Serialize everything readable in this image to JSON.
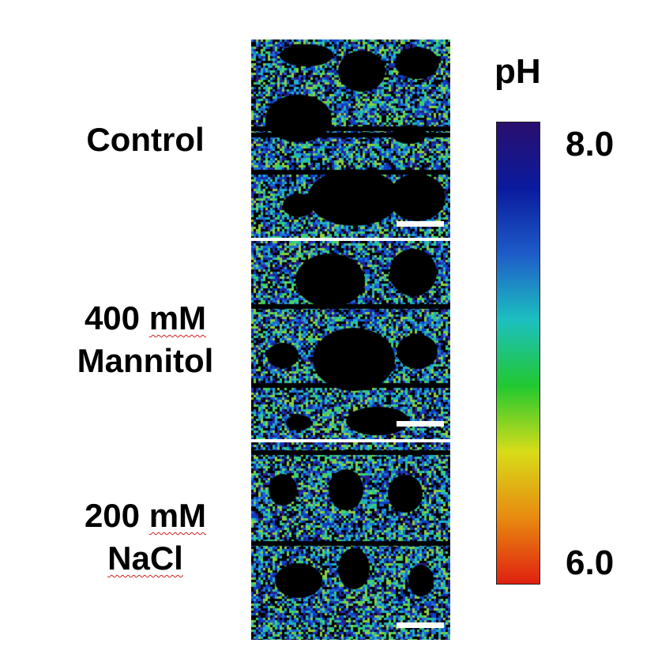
{
  "rows": [
    {
      "label_lines": [
        "Control"
      ],
      "label_squiggle": []
    },
    {
      "label_lines": [
        "400 mM",
        "Mannitol"
      ],
      "label_squiggle": [
        "mM"
      ]
    },
    {
      "label_lines": [
        "200 mM",
        "NaCl"
      ],
      "label_squiggle": [
        "mM",
        "NaCl"
      ]
    }
  ],
  "colorbar": {
    "title": "pH",
    "max_label": "8.0",
    "min_label": "6.0",
    "range": [
      6.0,
      8.0
    ],
    "colors_top_to_bottom": [
      "#2a0f6e",
      "#0a1a9e",
      "#1e5cc8",
      "#1cc0c0",
      "#22c830",
      "#d8dc18",
      "#e88a10",
      "#e02010"
    ]
  },
  "panel_colors": [
    "#0a3fc8",
    "#1e6cd8",
    "#20b0c8",
    "#3cd070",
    "#8cd040",
    "#2a1e8e"
  ]
}
